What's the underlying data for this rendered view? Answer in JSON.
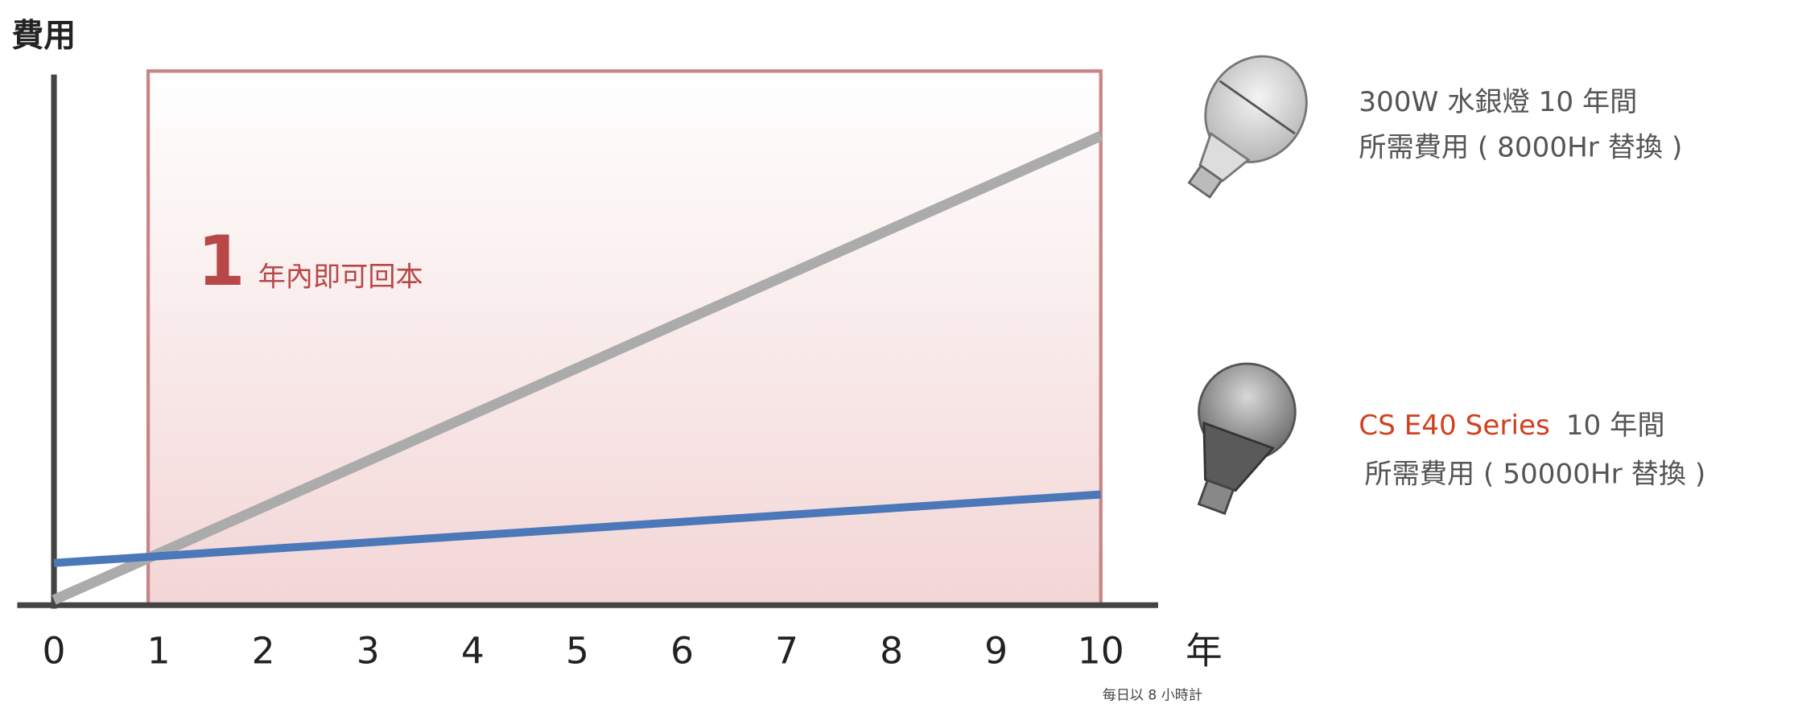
{
  "chart_data": {
    "type": "line",
    "y_axis_label": "費用",
    "x_axis_label": "年",
    "note": "每日以 8 小時計",
    "x": [
      0,
      10
    ],
    "xlim": [
      0,
      10
    ],
    "xticks": [
      0,
      1,
      2,
      3,
      4,
      5,
      6,
      7,
      8,
      9,
      10
    ],
    "ylim": [
      0,
      100
    ],
    "highlight": {
      "x_start": 0.9,
      "x_end": 10,
      "number": "1",
      "text": "年內即可回本",
      "color": "#b84848"
    },
    "series": [
      {
        "name": "300W 水銀燈 10 年間",
        "description": "所需費用 ( 8000Hr 替換 )",
        "color": "#ababab",
        "values": [
          1,
          89
        ]
      },
      {
        "name": "CS E40 Series",
        "name_color": "#d0401e",
        "suffix": "10 年間",
        "description": "所需費用 ( 50000Hr 替換 )",
        "color": "#4a78b8",
        "values": [
          8,
          21
        ]
      }
    ]
  }
}
